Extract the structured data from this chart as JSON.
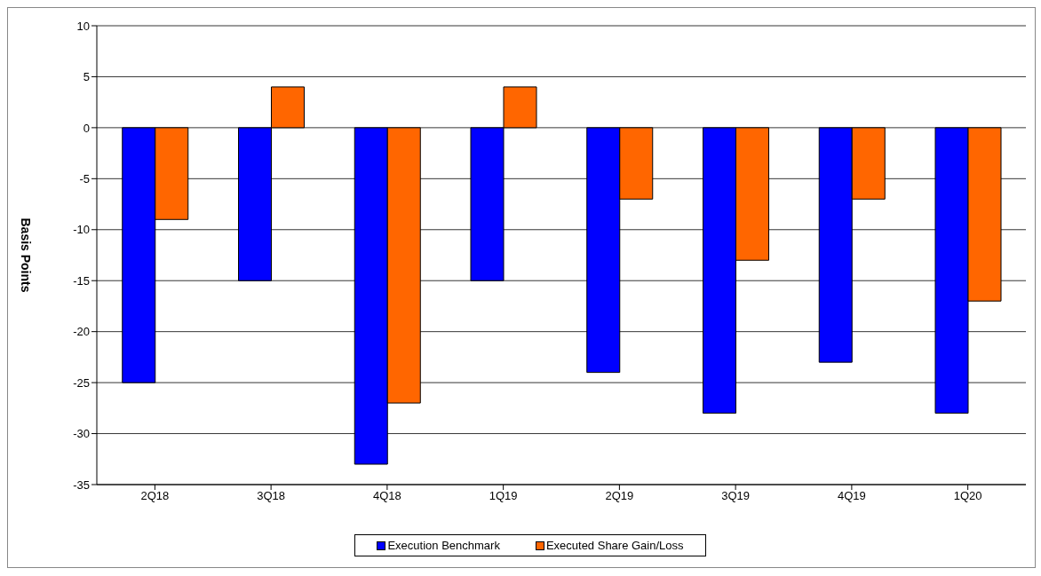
{
  "chart_data": {
    "type": "bar",
    "ylabel": "Basis Points",
    "categories": [
      "2Q18",
      "3Q18",
      "4Q18",
      "1Q19",
      "2Q19",
      "3Q19",
      "4Q19",
      "1Q20"
    ],
    "series": [
      {
        "name": "Execution Benchmark",
        "color": "#0000ff",
        "values": [
          -25,
          -15,
          -33,
          -15,
          -24,
          -28,
          -23,
          -28
        ]
      },
      {
        "name": "Executed Share Gain/Loss",
        "color": "#ff6600",
        "values": [
          -9,
          4,
          -27,
          4,
          -7,
          -13,
          -7,
          -17
        ]
      }
    ],
    "ylim": [
      -35,
      10
    ],
    "yticks": [
      -35,
      -30,
      -25,
      -20,
      -15,
      -10,
      -5,
      0,
      5,
      10
    ],
    "grid": "y",
    "legend": "bottom"
  }
}
